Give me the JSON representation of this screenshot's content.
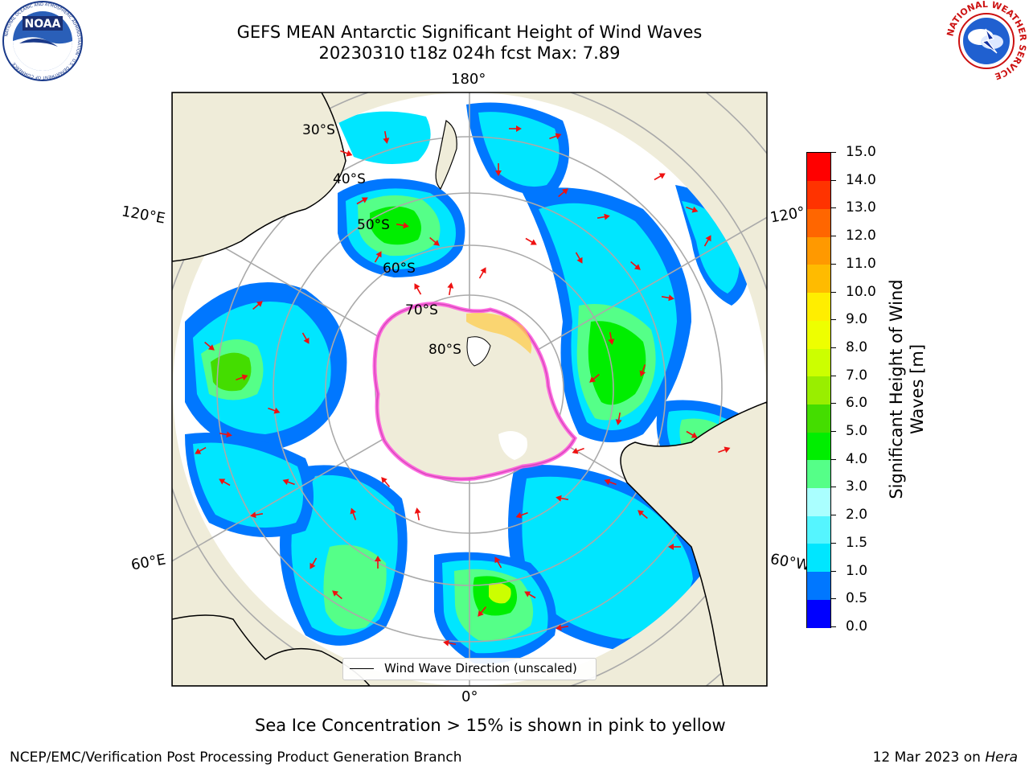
{
  "header": {
    "title_line1": "GEFS MEAN Antarctic Significant Height of Wind Waves",
    "title_line2": "20230310 t18z 024h fcst   Max: 7.89"
  },
  "logos": {
    "noaa": {
      "text": "NOAA",
      "ring_text": "NATIONAL OCEANIC AND ATMOSPHERIC ADMINISTRATION · U.S. DEPARTMENT OF COMMERCE"
    },
    "nws": {
      "ring_text": "NATIONAL WEATHER SERVICE"
    }
  },
  "map": {
    "projection": "south-polar-stereographic",
    "longitude_labels": {
      "top": "180°",
      "bottom": "0°",
      "left_upper": "120°E",
      "right_upper": "120°",
      "left_lower": "60°E",
      "right_lower": "60°W"
    },
    "latitude_labels": [
      "30°S",
      "40°S",
      "50°S",
      "60°S",
      "70°S",
      "80°S"
    ],
    "legend_label": "Wind Wave Direction (unscaled)",
    "colors": {
      "land": "#efecd9",
      "arrow": "#ee1111",
      "sea_ice": "#ff55dd",
      "graticule": "#aaaaaa"
    }
  },
  "colorbar": {
    "label": "Significant Height of Wind Waves [m]",
    "label_line1": "Significant Height of Wind",
    "label_line2": "Waves [m]",
    "ticks": [
      "0.0",
      "0.5",
      "1.0",
      "1.5",
      "2.0",
      "3.0",
      "4.0",
      "5.0",
      "6.0",
      "7.0",
      "8.0",
      "9.0",
      "10.0",
      "11.0",
      "12.0",
      "13.0",
      "14.0",
      "15.0"
    ],
    "colors": [
      "#0000ff",
      "#0077ff",
      "#00e6ff",
      "#55f5ff",
      "#aaffff",
      "#55ff88",
      "#00ee00",
      "#44dd00",
      "#99ee00",
      "#ccff00",
      "#eeff00",
      "#ffee00",
      "#ffbb00",
      "#ff9900",
      "#ff6600",
      "#ff3300",
      "#ff0000"
    ]
  },
  "notes": {
    "sea_ice": "Sea Ice Concentration > 15% is shown in pink to yellow",
    "footer_left": "NCEP/EMC/Verification Post Processing Product Generation Branch",
    "footer_date": "12 Mar 2023 on ",
    "footer_machine": "Hera"
  }
}
